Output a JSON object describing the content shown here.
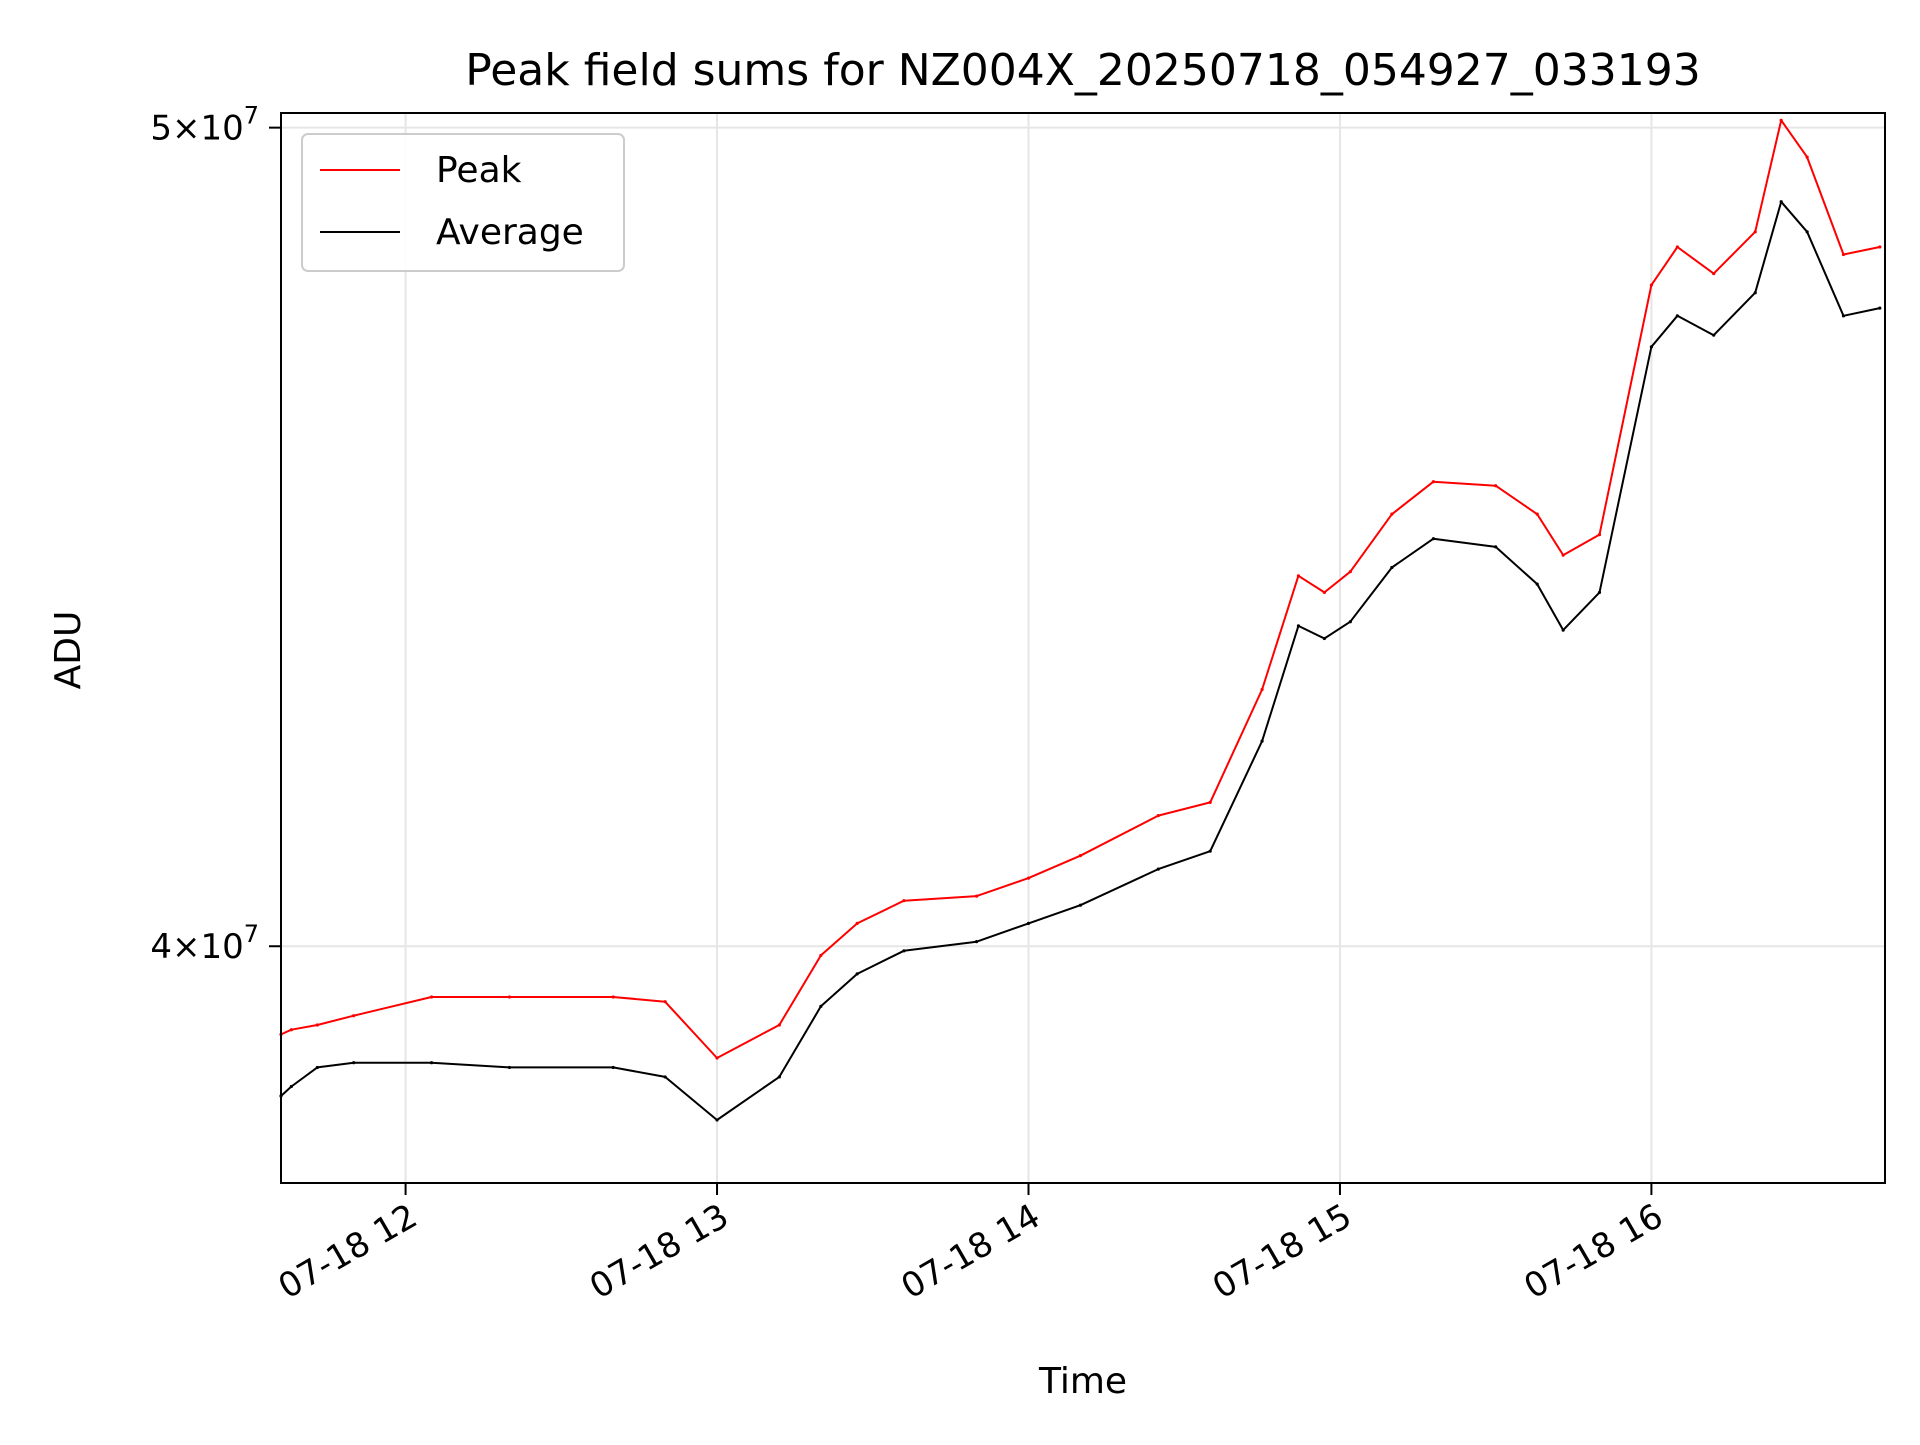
{
  "chart_data": {
    "type": "line",
    "title": "Peak field sums for NZ004X_20250718_054927_033193",
    "xlabel": "Time",
    "ylabel": "ADU",
    "y_scale": "log",
    "xlim": [
      "2025-07-18T11:36",
      "2025-07-18T16:45"
    ],
    "ylim": [
      37500000,
      50200000
    ],
    "x_ticks": [
      {
        "value": "2025-07-18T12:00",
        "label": "07-18 12"
      },
      {
        "value": "2025-07-18T13:00",
        "label": "07-18 13"
      },
      {
        "value": "2025-07-18T14:00",
        "label": "07-18 14"
      },
      {
        "value": "2025-07-18T15:00",
        "label": "07-18 15"
      },
      {
        "value": "2025-07-18T16:00",
        "label": "07-18 16"
      }
    ],
    "y_ticks": [
      {
        "value": 40000000,
        "label_base": "4",
        "label_exp": "7"
      },
      {
        "value": 50000000,
        "label_base": "5",
        "label_exp": "7"
      }
    ],
    "grid": true,
    "legend_position": "top-left",
    "series": [
      {
        "name": "Peak",
        "color": "#ff0000",
        "x": [
          "2025-07-18T11:36",
          "2025-07-18T11:38",
          "2025-07-18T11:43",
          "2025-07-18T11:50",
          "2025-07-18T12:05",
          "2025-07-18T12:20",
          "2025-07-18T12:40",
          "2025-07-18T12:50",
          "2025-07-18T13:00",
          "2025-07-18T13:12",
          "2025-07-18T13:20",
          "2025-07-18T13:27",
          "2025-07-18T13:36",
          "2025-07-18T13:50",
          "2025-07-18T14:00",
          "2025-07-18T14:10",
          "2025-07-18T14:25",
          "2025-07-18T14:35",
          "2025-07-18T14:45",
          "2025-07-18T14:52",
          "2025-07-18T14:57",
          "2025-07-18T15:02",
          "2025-07-18T15:10",
          "2025-07-18T15:18",
          "2025-07-18T15:30",
          "2025-07-18T15:38",
          "2025-07-18T15:43",
          "2025-07-18T15:50",
          "2025-07-18T16:00",
          "2025-07-18T16:05",
          "2025-07-18T16:12",
          "2025-07-18T16:20",
          "2025-07-18T16:25",
          "2025-07-18T16:30",
          "2025-07-18T16:37",
          "2025-07-18T16:44"
        ],
        "y": [
          39050000,
          39100000,
          39150000,
          39250000,
          39450000,
          39450000,
          39450000,
          39400000,
          38800000,
          39150000,
          39900000,
          40250000,
          40500000,
          40550000,
          40750000,
          41000000,
          41450000,
          41600000,
          42900000,
          44250000,
          44050000,
          44300000,
          45000000,
          45400000,
          45350000,
          45000000,
          44500000,
          44750000,
          47900000,
          48400000,
          48050000,
          48600000,
          50100000,
          49600000,
          48300000,
          48400000
        ]
      },
      {
        "name": "Average",
        "color": "#000000",
        "x": [
          "2025-07-18T11:36",
          "2025-07-18T11:38",
          "2025-07-18T11:43",
          "2025-07-18T11:50",
          "2025-07-18T12:05",
          "2025-07-18T12:20",
          "2025-07-18T12:40",
          "2025-07-18T12:50",
          "2025-07-18T13:00",
          "2025-07-18T13:12",
          "2025-07-18T13:20",
          "2025-07-18T13:27",
          "2025-07-18T13:36",
          "2025-07-18T13:50",
          "2025-07-18T14:00",
          "2025-07-18T14:10",
          "2025-07-18T14:25",
          "2025-07-18T14:35",
          "2025-07-18T14:45",
          "2025-07-18T14:52",
          "2025-07-18T14:57",
          "2025-07-18T15:02",
          "2025-07-18T15:10",
          "2025-07-18T15:18",
          "2025-07-18T15:30",
          "2025-07-18T15:38",
          "2025-07-18T15:43",
          "2025-07-18T15:50",
          "2025-07-18T16:00",
          "2025-07-18T16:05",
          "2025-07-18T16:12",
          "2025-07-18T16:20",
          "2025-07-18T16:25",
          "2025-07-18T16:30",
          "2025-07-18T16:37",
          "2025-07-18T16:44"
        ],
        "y": [
          38400000,
          38500000,
          38700000,
          38750000,
          38750000,
          38700000,
          38700000,
          38600000,
          38150000,
          38600000,
          39350000,
          39700000,
          39950000,
          40050000,
          40250000,
          40450000,
          40850000,
          41050000,
          42300000,
          43650000,
          43500000,
          43700000,
          44350000,
          44700000,
          44600000,
          44150000,
          43600000,
          44050000,
          47100000,
          47500000,
          47250000,
          47800000,
          49000000,
          48600000,
          47500000,
          47600000
        ]
      }
    ]
  }
}
